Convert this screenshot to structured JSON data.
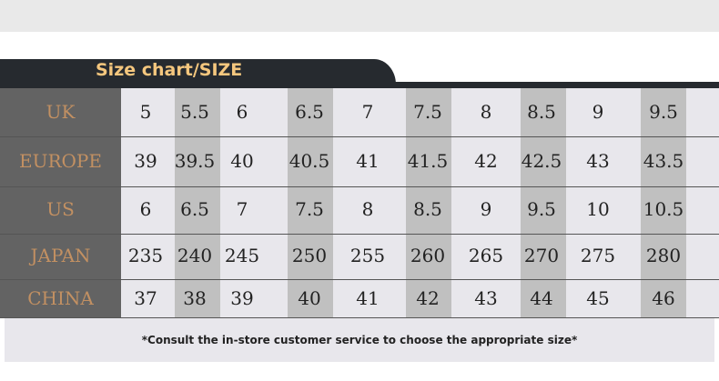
{
  "title": "Size chart/SIZE",
  "rows": [
    {
      "label": "UK",
      "values": [
        "5",
        "5.5",
        "6",
        "6.5",
        "7",
        "7.5",
        "8",
        "8.5",
        "9",
        "9.5"
      ]
    },
    {
      "label": "EUROPE",
      "values": [
        "39",
        "39.5",
        "40",
        "40.5",
        "41",
        "41.5",
        "42",
        "42.5",
        "43",
        "43.5"
      ]
    },
    {
      "label": "US",
      "values": [
        "6",
        "6.5",
        "7",
        "7.5",
        "8",
        "8.5",
        "9",
        "9.5",
        "10",
        "10.5"
      ]
    },
    {
      "label": "JAPAN",
      "values": [
        "235",
        "240",
        "245",
        "250",
        "255",
        "260",
        "265",
        "270",
        "275",
        "280"
      ]
    },
    {
      "label": "CHINA",
      "values": [
        "37",
        "38",
        "39",
        "40",
        "41",
        "42",
        "43",
        "44",
        "45",
        "46"
      ]
    }
  ],
  "note": "*Consult the in-store customer service to choose the appropriate size*",
  "colors": {
    "header": "#262a2f",
    "title": "#f5c77e",
    "label_bg": "#636363",
    "label_text": "#c29062",
    "stripe": "#c0c0c0",
    "cell_bg": "#e8e7ec"
  }
}
